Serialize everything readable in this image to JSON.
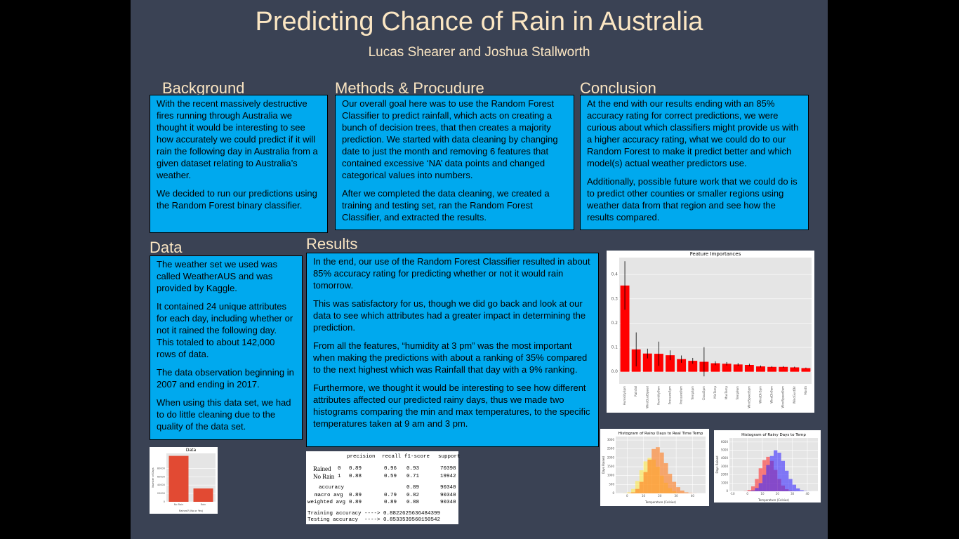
{
  "title": "Predicting Chance of Rain in Australia",
  "authors": "Lucas Shearer and Joshua Stallworth",
  "sections": {
    "background": {
      "heading": "Background",
      "paragraphs": [
        "With the recent massively destructive fires running through Australia we thought it would be interesting to see how accurately we could predict if it will rain the following day in Australia from a given dataset relating to Australia’s weather.",
        "We decided to run our predictions using the Random Forest binary classifier."
      ]
    },
    "methods": {
      "heading": "Methods & Procudure",
      "paragraphs": [
        "Our overall goal here was to use the Random Forest Classifier to predict rainfall, which acts on creating a bunch of decision trees, that then creates a majority prediction. We started with data cleaning by changing date to just the month and removing 6 features that contained excessive ‘NA’ data points and changed categorical values into numbers.",
        "After we completed the data cleaning, we created a training and testing set, ran the Random Forest Classifier, and extracted the results."
      ]
    },
    "conclusion": {
      "heading": "Conclusion",
      "paragraphs": [
        "At the end with our results ending with an 85% accuracy rating for correct predictions, we were curious about which classifiers might provide us with a higher accuracy rating, what we could do to our Random Forest to make it predict better and which model(s) actual weather predictors use.",
        "Additionally, possible future work that we could do is to predict other counties or smaller regions using weather data from that region and see how the results compared."
      ]
    },
    "data": {
      "heading": "Data",
      "paragraphs": [
        "The weather set we used was called WeatherAUS and was provided by Kaggle.",
        "It contained 24 unique attributes for each day, including whether or not it rained the following day. This totaled to about 142,000 rows of data.",
        "The data observation beginning in 2007 and ending in 2017.",
        "When using this data set, we had to do little cleaning due to the quality of the data set."
      ]
    },
    "results": {
      "heading": "Results",
      "paragraphs": [
        "In the end, our use of the Random Forest Classifier resulted in about 85% accuracy rating for predicting whether or not it would rain tomorrow.",
        "This was satisfactory for us, though we did go back and look at our data to see which attributes had a greater impact in determining the prediction.",
        "From all the features, “humidity at 3 pm” was the most important when making the predictions with about a ranking of 35% compared to the next highest which was Rainfall that day with a 9% ranking.",
        "Furthermore, we thought it would be interesting to see how different attributes affected our predicted rainy days, thus we made two histograms comparing the min and max temperatures, to the specific temperatures taken at 9 am and 3 pm."
      ]
    }
  },
  "report": {
    "header": [
      "precision",
      "recall",
      "f1-score",
      "support"
    ],
    "rows": [
      {
        "name": "Rained",
        "label": "0",
        "cells": [
          "0.89",
          "0.96",
          "0.93",
          "70398"
        ]
      },
      {
        "name": "No Rain",
        "label": "1",
        "cells": [
          "0.88",
          "0.59",
          "0.71",
          "19942"
        ]
      },
      {
        "label": "accuracy",
        "cells": [
          null,
          null,
          "0.89",
          "90340"
        ]
      },
      {
        "label": "macro avg",
        "cells": [
          "0.89",
          "0.79",
          "0.82",
          "90340"
        ]
      },
      {
        "label": "weighted avg",
        "cells": [
          "0.89",
          "0.89",
          "0.88",
          "90340"
        ]
      }
    ],
    "summary": [
      "Training accuracy ----> 0.8822625636484399",
      "Testing accuracy  ----> 0.8533539560150542"
    ]
  },
  "chart_data": [
    {
      "type": "bar",
      "title": "Feature Importances",
      "color": "#ff0000",
      "grid": true,
      "categories": [
        "Humidity3pm",
        "Rainfall",
        "WindGustSpeed",
        "Humidity9am",
        "Pressure3pm",
        "Pressure9am",
        "Temp3pm",
        "Cloud3pm",
        "MinTemp",
        "MaxTemp",
        "Temp9am",
        "WindSpeed3pm",
        "WindDir3pm",
        "WindDir9am",
        "WindSpeed9am",
        "WindGustDir",
        "Month"
      ],
      "values": [
        0.355,
        0.092,
        0.075,
        0.074,
        0.068,
        0.052,
        0.045,
        0.041,
        0.035,
        0.033,
        0.03,
        0.028,
        0.022,
        0.02,
        0.02,
        0.018,
        0.015
      ],
      "errors": [
        0.1,
        0.07,
        0.02,
        0.05,
        0.02,
        0.015,
        0.012,
        0.06,
        0.008,
        0.007,
        0.006,
        0.005,
        0.004,
        0.003,
        0.003,
        0.003,
        0.002
      ],
      "ylim": [
        -0.05,
        0.47
      ],
      "yticks": [
        {
          "value": 0,
          "label": "0.0"
        },
        0.1,
        0.2,
        0.3,
        0.4
      ]
    },
    {
      "type": "bar",
      "title": "Data",
      "color": "#e24a33",
      "grid": true,
      "categories": [
        "No Rain",
        "Rain"
      ],
      "values": [
        110000,
        32000
      ],
      "xlabel": "Rained? (No or Yes)",
      "ylabel": "Number of Days",
      "ylim": [
        0,
        116000
      ],
      "yticks": [
        0,
        20000,
        40000,
        60000,
        80000
      ]
    },
    {
      "type": "histogram",
      "title": "Histogram of Rainy Days to Real Time Temp",
      "grid": true,
      "xlabel": "Temperature (Celsius)",
      "ylabel": "Days Rained",
      "bins": [
        -5,
        -2.5,
        0,
        2.5,
        5,
        7.5,
        10,
        12.5,
        15,
        17.5,
        20,
        22.5,
        25,
        27.5,
        30,
        32.5,
        35,
        37.5,
        40,
        42.5,
        45
      ],
      "series": [
        {
          "color": "#ffe94a",
          "values": [
            0,
            10,
            60,
            250,
            700,
            1300,
            1800,
            2000,
            1900,
            1500,
            1000,
            600,
            300,
            120,
            40,
            10,
            0,
            0,
            0,
            0
          ]
        },
        {
          "color": "#ff7a1a",
          "values": [
            0,
            0,
            10,
            60,
            250,
            650,
            1200,
            1900,
            2500,
            2600,
            2300,
            1700,
            1100,
            650,
            350,
            160,
            60,
            20,
            5,
            0
          ]
        }
      ],
      "xlim": [
        -7,
        48
      ],
      "xticks": [
        0,
        10,
        20,
        30,
        40
      ],
      "ylim": [
        0,
        3200
      ],
      "yticks": [
        0,
        500,
        1000,
        1500,
        2000,
        2500,
        3000
      ]
    },
    {
      "type": "histogram",
      "title": "Histogram of Rainy Days to Temp",
      "grid": true,
      "xlabel": "Temperature (Celsius)",
      "ylabel": "Days Rained",
      "bins": [
        -5,
        -2.5,
        0,
        2.5,
        5,
        7.5,
        10,
        12.5,
        15,
        17.5,
        20,
        22.5,
        25,
        27.5,
        30,
        32.5,
        35,
        37.5,
        40,
        42.5,
        45
      ],
      "series": [
        {
          "color": "#ff3030",
          "values": [
            0,
            20,
            150,
            600,
            1500,
            2800,
            3800,
            4200,
            3700,
            2600,
            1500,
            700,
            250,
            80,
            20,
            5,
            0,
            0,
            0,
            0
          ]
        },
        {
          "color": "#3a2cff",
          "values": [
            0,
            0,
            20,
            100,
            400,
            1000,
            2000,
            3200,
            4300,
            5000,
            4700,
            3700,
            2500,
            1500,
            800,
            350,
            120,
            30,
            5,
            0
          ]
        }
      ],
      "xlim": [
        -12,
        47
      ],
      "xticks": [
        -10,
        0,
        10,
        20,
        30,
        40
      ],
      "ylim": [
        0,
        6500
      ],
      "yticks": [
        0,
        1000,
        2000,
        3000,
        4000,
        5000,
        6000
      ]
    }
  ]
}
